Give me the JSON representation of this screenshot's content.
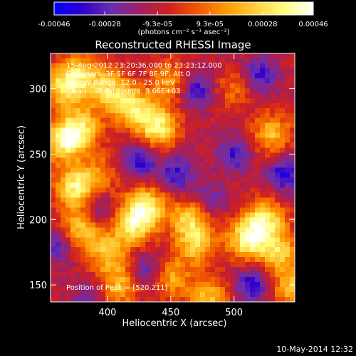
{
  "chart_data": {
    "type": "heatmap",
    "title": "Reconstructed RHESSI Image",
    "xlabel": "Heliocentric X (arcsec)",
    "ylabel": "Heliocentric Y (arcsec)",
    "xlim": [
      355,
      548
    ],
    "ylim": [
      137,
      327
    ],
    "xticks": [
      "400",
      "450",
      "500"
    ],
    "yticks": [
      "150",
      "200",
      "250",
      "300"
    ],
    "xtick_values": [
      400,
      450,
      500
    ],
    "ytick_values": [
      150,
      200,
      250,
      300
    ],
    "colorbar": {
      "range": [
        -0.00046,
        0.00046
      ],
      "tick_labels": [
        "-0.00046",
        "-0.00028",
        "-9.3e-05",
        "9.3e-05",
        "0.00028",
        "0.00046"
      ],
      "tick_values": [
        -0.00046,
        -0.00028,
        -9.3e-05,
        9.3e-05,
        0.00028,
        0.00046
      ],
      "units_label": "(photons cm⁻² s⁻¹ asec⁻²)",
      "colors": [
        "#0000ff",
        "#3300cc",
        "#6a2fb0",
        "#a02060",
        "#d02020",
        "#f05a00",
        "#ff9a00",
        "#ffd040",
        "#ffff80",
        "#ffffff"
      ]
    },
    "annotations": {
      "time": "15-Aug-2012 23:20:36.000 to 23:23:12.000",
      "detectors": "Detectors: 3F 5F 6F 7F 8F 9F, Att 0",
      "energy": "Energy Range: 12.0 - 25.0 keV",
      "clean": "Clean     Total counts: 3.66E+03",
      "peak": "Position of Peak = [520,211]"
    },
    "hotspots": [
      {
        "x": 365,
        "y": 300,
        "v": 0.8
      },
      {
        "x": 378,
        "y": 312,
        "v": 0.7
      },
      {
        "x": 400,
        "y": 300,
        "v": 0.8
      },
      {
        "x": 420,
        "y": 285,
        "v": 0.9
      },
      {
        "x": 440,
        "y": 270,
        "v": 1.0
      },
      {
        "x": 450,
        "y": 305,
        "v": 0.6
      },
      {
        "x": 365,
        "y": 260,
        "v": 1.0
      },
      {
        "x": 380,
        "y": 270,
        "v": 0.8
      },
      {
        "x": 375,
        "y": 225,
        "v": 1.0
      },
      {
        "x": 380,
        "y": 195,
        "v": 0.9
      },
      {
        "x": 430,
        "y": 210,
        "v": 1.0
      },
      {
        "x": 420,
        "y": 195,
        "v": 0.8
      },
      {
        "x": 400,
        "y": 175,
        "v": 0.7
      },
      {
        "x": 410,
        "y": 150,
        "v": 0.7
      },
      {
        "x": 465,
        "y": 200,
        "v": 0.8
      },
      {
        "x": 470,
        "y": 180,
        "v": 0.7
      },
      {
        "x": 450,
        "y": 155,
        "v": 0.6
      },
      {
        "x": 510,
        "y": 185,
        "v": 1.0
      },
      {
        "x": 525,
        "y": 200,
        "v": 0.9
      },
      {
        "x": 535,
        "y": 175,
        "v": 0.8
      },
      {
        "x": 480,
        "y": 140,
        "v": 0.7
      },
      {
        "x": 545,
        "y": 148,
        "v": 0.7
      },
      {
        "x": 530,
        "y": 265,
        "v": 0.7
      },
      {
        "x": 500,
        "y": 300,
        "v": 0.4
      },
      {
        "x": 395,
        "y": 235,
        "v": 0.4
      }
    ],
    "coldspots": [
      {
        "x": 470,
        "y": 300,
        "v": 1.0
      },
      {
        "x": 425,
        "y": 245,
        "v": 1.0
      },
      {
        "x": 455,
        "y": 235,
        "v": 0.9
      },
      {
        "x": 540,
        "y": 235,
        "v": 1.0
      },
      {
        "x": 500,
        "y": 250,
        "v": 0.8
      },
      {
        "x": 390,
        "y": 205,
        "v": 0.9
      },
      {
        "x": 360,
        "y": 180,
        "v": 0.7
      },
      {
        "x": 515,
        "y": 150,
        "v": 1.0
      },
      {
        "x": 430,
        "y": 160,
        "v": 0.8
      },
      {
        "x": 520,
        "y": 310,
        "v": 0.9
      },
      {
        "x": 480,
        "y": 215,
        "v": 0.6
      },
      {
        "x": 385,
        "y": 140,
        "v": 0.6
      }
    ]
  },
  "footer": {
    "date": "10-May-2014 12:32"
  }
}
